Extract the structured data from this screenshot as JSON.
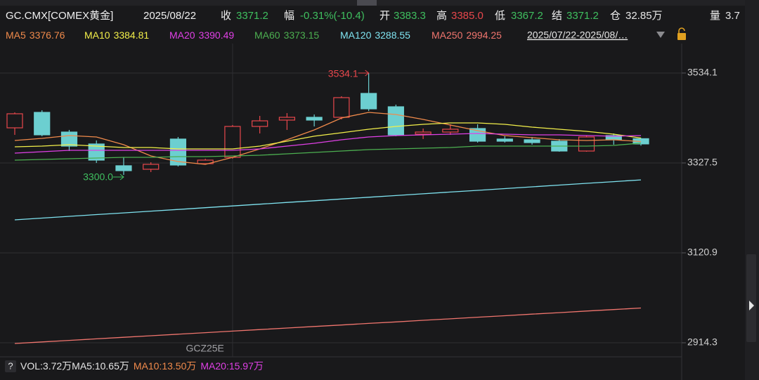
{
  "chart_data": {
    "type": "candlestick",
    "title": "GC.CMX[COMEX黄金]",
    "date": "2025/08/22",
    "quote": [
      {
        "label": "收",
        "value": "3371.2",
        "color": "#3fbf5f"
      },
      {
        "label": "幅",
        "value": "-0.31%(-10.4)",
        "color": "#3fbf5f"
      },
      {
        "label": "开",
        "value": "3383.3",
        "color": "#3fbf5f"
      },
      {
        "label": "高",
        "value": "3385.0",
        "color": "#e8474c"
      },
      {
        "label": "低",
        "value": "3367.2",
        "color": "#3fbf5f"
      },
      {
        "label": "结",
        "value": "3371.2",
        "color": "#3fbf5f"
      },
      {
        "label": "仓",
        "value": "32.85万",
        "color": "#e6e6e6"
      },
      {
        "label": "量",
        "value": "3.7",
        "color": "#e6e6e6"
      }
    ],
    "range": "2025/07/22-2025/08/…",
    "categories": [
      null,
      null,
      null,
      null,
      null,
      null,
      null,
      null,
      "GCZ25E",
      null,
      null,
      null,
      null,
      null,
      null,
      null,
      null,
      null,
      null,
      null,
      null,
      null,
      null,
      null
    ],
    "open": [
      3408.2,
      3443.7,
      3398.5,
      3371.1,
      3321.1,
      3313.0,
      3382.4,
      3325.9,
      3340.4,
      3411.4,
      3426.0,
      3432.4,
      3432.4,
      3487.3,
      3456.6,
      3393.7,
      3398.5,
      3406.6,
      3382.4,
      3380.8,
      3377.5,
      3354.9,
      3390.5,
      3383.3
    ],
    "high": [
      3443.7,
      3448.6,
      3403.4,
      3379.2,
      3340.4,
      3329.1,
      3387.2,
      3337.2,
      3414.7,
      3435.6,
      3442.1,
      3438.9,
      3480.8,
      3534.1,
      3461.5,
      3406.6,
      3416.3,
      3416.3,
      3388.9,
      3387.2,
      3382.4,
      3390.5,
      3395.3,
      3385.0
    ],
    "low": [
      3392.0,
      3388.9,
      3354.9,
      3327.5,
      3300.0,
      3306.5,
      3319.4,
      3324.3,
      3337.2,
      3395.3,
      3403.4,
      3411.4,
      3427.6,
      3446.9,
      3388.9,
      3382.4,
      3392.1,
      3374.3,
      3374.3,
      3369.5,
      3353.3,
      3353.3,
      3369.5,
      3367.2
    ],
    "close": [
      3440.5,
      3392.1,
      3366.2,
      3334.0,
      3309.8,
      3324.3,
      3322.7,
      3334.0,
      3411.4,
      3424.3,
      3432.4,
      3426.0,
      3477.6,
      3451.8,
      3392.1,
      3398.5,
      3405.0,
      3377.5,
      3377.5,
      3374.3,
      3354.9,
      3387.2,
      3380.8,
      3371.2
    ],
    "up_color": "#e8474c",
    "down_color": "#6ccfd0",
    "max_label": "3534.1",
    "min_label": "3300.0",
    "series": [
      {
        "name": "MA5",
        "color": "#f08a4b",
        "values": [
          3379.2,
          3384.0,
          3390.5,
          3387.2,
          3369.5,
          3343.6,
          3330.7,
          3324.3,
          3340.4,
          3359.8,
          3380.8,
          3403.4,
          3430.8,
          3443.7,
          3438.9,
          3427.6,
          3414.7,
          3401.8,
          3390.5,
          3385.6,
          3380.8,
          3379.2,
          3380.8,
          3376.76
        ]
      },
      {
        "name": "MA10",
        "color": "#f2ef4a",
        "values": [
          3364.6,
          3366.2,
          3369.5,
          3366.2,
          3363.0,
          3363.0,
          3359.8,
          3359.8,
          3359.8,
          3366.2,
          3377.5,
          3388.9,
          3396.9,
          3405.0,
          3411.4,
          3416.3,
          3419.5,
          3419.5,
          3416.3,
          3409.8,
          3405.0,
          3400.1,
          3393.7,
          3384.81
        ]
      },
      {
        "name": "MA20",
        "color": "#e040e6",
        "values": [
          3350.1,
          3353.3,
          3356.6,
          3356.6,
          3356.6,
          3356.6,
          3356.6,
          3356.6,
          3356.6,
          3359.8,
          3366.2,
          3372.7,
          3380.8,
          3387.2,
          3390.5,
          3392.1,
          3393.7,
          3395.3,
          3393.7,
          3392.1,
          3392.1,
          3390.5,
          3388.9,
          3390.49
        ]
      },
      {
        "name": "MA60",
        "color": "#4caf50",
        "values": [
          3333.9,
          3335.6,
          3337.2,
          3338.8,
          3340.4,
          3340.4,
          3342.0,
          3342.0,
          3343.6,
          3345.2,
          3348.5,
          3351.7,
          3354.9,
          3358.2,
          3359.8,
          3361.4,
          3363.0,
          3366.2,
          3366.2,
          3366.2,
          3366.2,
          3366.2,
          3367.9,
          3373.15
        ]
      },
      {
        "name": "MA120",
        "color": "#7fe3f0",
        "values": [
          3196.8,
          3200.8,
          3204.8,
          3208.8,
          3212.7,
          3216.7,
          3220.7,
          3224.7,
          3228.7,
          3232.7,
          3236.7,
          3240.7,
          3244.7,
          3248.7,
          3252.6,
          3256.6,
          3260.6,
          3264.6,
          3268.6,
          3272.6,
          3276.6,
          3280.6,
          3284.6,
          3288.55
        ]
      },
      {
        "name": "MA250",
        "color": "#f0756e",
        "values": [
          2912.7,
          2916.2,
          2919.8,
          2923.3,
          2926.9,
          2930.4,
          2934.0,
          2937.5,
          2941.1,
          2944.6,
          2948.2,
          2951.7,
          2955.2,
          2958.8,
          2962.3,
          2965.9,
          2969.4,
          2973.0,
          2976.5,
          2980.1,
          2983.6,
          2987.2,
          2990.7,
          2994.25
        ]
      }
    ],
    "ylim": [
      2903.0,
      3629.3
    ],
    "yticks": [
      3534.1,
      3327.5,
      3120.9,
      2914.3
    ],
    "grid": true,
    "volume_legend": [
      {
        "text": "VOL:3.72万",
        "color": "#e6e6e6"
      },
      {
        "text": "MA5:10.65万",
        "color": "#e6e6e6"
      },
      {
        "text": "MA10:13.50万",
        "color": "#f08a4b"
      },
      {
        "text": "MA20:15.97万",
        "color": "#e040e6"
      }
    ]
  }
}
